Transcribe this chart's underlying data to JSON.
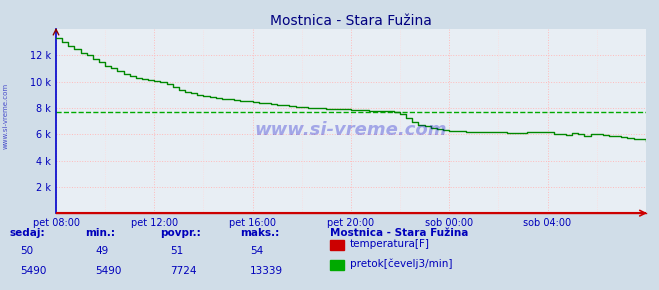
{
  "title": "Mostnica - Stara Fužina",
  "bg_color": "#d0dde8",
  "plot_bg_color": "#e8eef4",
  "grid_color": "#ffbbbb",
  "grid_minor_color": "#ffd8d8",
  "xlabel_ticks": [
    "pet 08:00",
    "pet 12:00",
    "pet 16:00",
    "pet 20:00",
    "sob 00:00",
    "sob 04:00"
  ],
  "ylabel_ticks": [
    "2 k",
    "4 k",
    "6 k",
    "8 k",
    "10 k",
    "12 k"
  ],
  "y_tick_vals": [
    2000,
    4000,
    6000,
    8000,
    10000,
    12000
  ],
  "ylim": [
    0,
    14000
  ],
  "xlim": [
    0,
    288
  ],
  "title_color": "#000080",
  "title_fontsize": 10,
  "tick_color": "#0000bb",
  "tick_fontsize": 7,
  "watermark": "www.si-vreme.com",
  "watermark_color": "#0000cc",
  "flow_color": "#008800",
  "flow_avg_color": "#00aa00",
  "flow_avg_value": 7724,
  "temp_color": "#cc0000",
  "bottom_bg": "#c0ccd8",
  "bottom_text_color": "#0000bb",
  "bottom_title": "Mostnica - Stara Fužina",
  "stats_labels": [
    "sedaj:",
    "min.:",
    "povpr.:",
    "maks.:"
  ],
  "temp_stats": [
    "50",
    "49",
    "51",
    "54"
  ],
  "flow_stats": [
    "5490",
    "5490",
    "7724",
    "13339"
  ],
  "legend_temp": "temperatura[F]",
  "legend_flow": "pretok[čevelj3/min]",
  "flow_segments": [
    [
      0,
      13300
    ],
    [
      3,
      13000
    ],
    [
      6,
      12700
    ],
    [
      9,
      12500
    ],
    [
      12,
      12200
    ],
    [
      15,
      12000
    ],
    [
      18,
      11700
    ],
    [
      21,
      11500
    ],
    [
      24,
      11200
    ],
    [
      27,
      11000
    ],
    [
      30,
      10800
    ],
    [
      33,
      10600
    ],
    [
      36,
      10400
    ],
    [
      39,
      10300
    ],
    [
      42,
      10200
    ],
    [
      45,
      10100
    ],
    [
      48,
      10050
    ],
    [
      51,
      10000
    ],
    [
      54,
      9800
    ],
    [
      57,
      9600
    ],
    [
      60,
      9400
    ],
    [
      63,
      9200
    ],
    [
      66,
      9100
    ],
    [
      69,
      9000
    ],
    [
      72,
      8900
    ],
    [
      75,
      8800
    ],
    [
      78,
      8750
    ],
    [
      81,
      8700
    ],
    [
      84,
      8650
    ],
    [
      87,
      8600
    ],
    [
      90,
      8550
    ],
    [
      93,
      8500
    ],
    [
      96,
      8450
    ],
    [
      99,
      8400
    ],
    [
      102,
      8350
    ],
    [
      105,
      8300
    ],
    [
      108,
      8250
    ],
    [
      111,
      8200
    ],
    [
      114,
      8150
    ],
    [
      117,
      8100
    ],
    [
      120,
      8050
    ],
    [
      123,
      8000
    ],
    [
      126,
      7980
    ],
    [
      129,
      7960
    ],
    [
      132,
      7940
    ],
    [
      135,
      7920
    ],
    [
      138,
      7900
    ],
    [
      141,
      7880
    ],
    [
      144,
      7860
    ],
    [
      147,
      7840
    ],
    [
      150,
      7820
    ],
    [
      153,
      7800
    ],
    [
      156,
      7780
    ],
    [
      159,
      7760
    ],
    [
      162,
      7740
    ],
    [
      165,
      7700
    ],
    [
      168,
      7500
    ],
    [
      171,
      7200
    ],
    [
      174,
      6900
    ],
    [
      177,
      6700
    ],
    [
      180,
      6600
    ],
    [
      183,
      6500
    ],
    [
      186,
      6400
    ],
    [
      189,
      6300
    ],
    [
      192,
      6250
    ],
    [
      200,
      6200
    ],
    [
      210,
      6150
    ],
    [
      220,
      6100
    ],
    [
      230,
      6200
    ],
    [
      240,
      6150
    ],
    [
      243,
      6050
    ],
    [
      246,
      6000
    ],
    [
      249,
      5950
    ],
    [
      252,
      6100
    ],
    [
      255,
      6000
    ],
    [
      258,
      5900
    ],
    [
      261,
      6050
    ],
    [
      264,
      6000
    ],
    [
      267,
      5950
    ],
    [
      270,
      5900
    ],
    [
      273,
      5850
    ],
    [
      276,
      5800
    ],
    [
      279,
      5750
    ],
    [
      282,
      5650
    ],
    [
      285,
      5600
    ],
    [
      288,
      5490
    ]
  ]
}
